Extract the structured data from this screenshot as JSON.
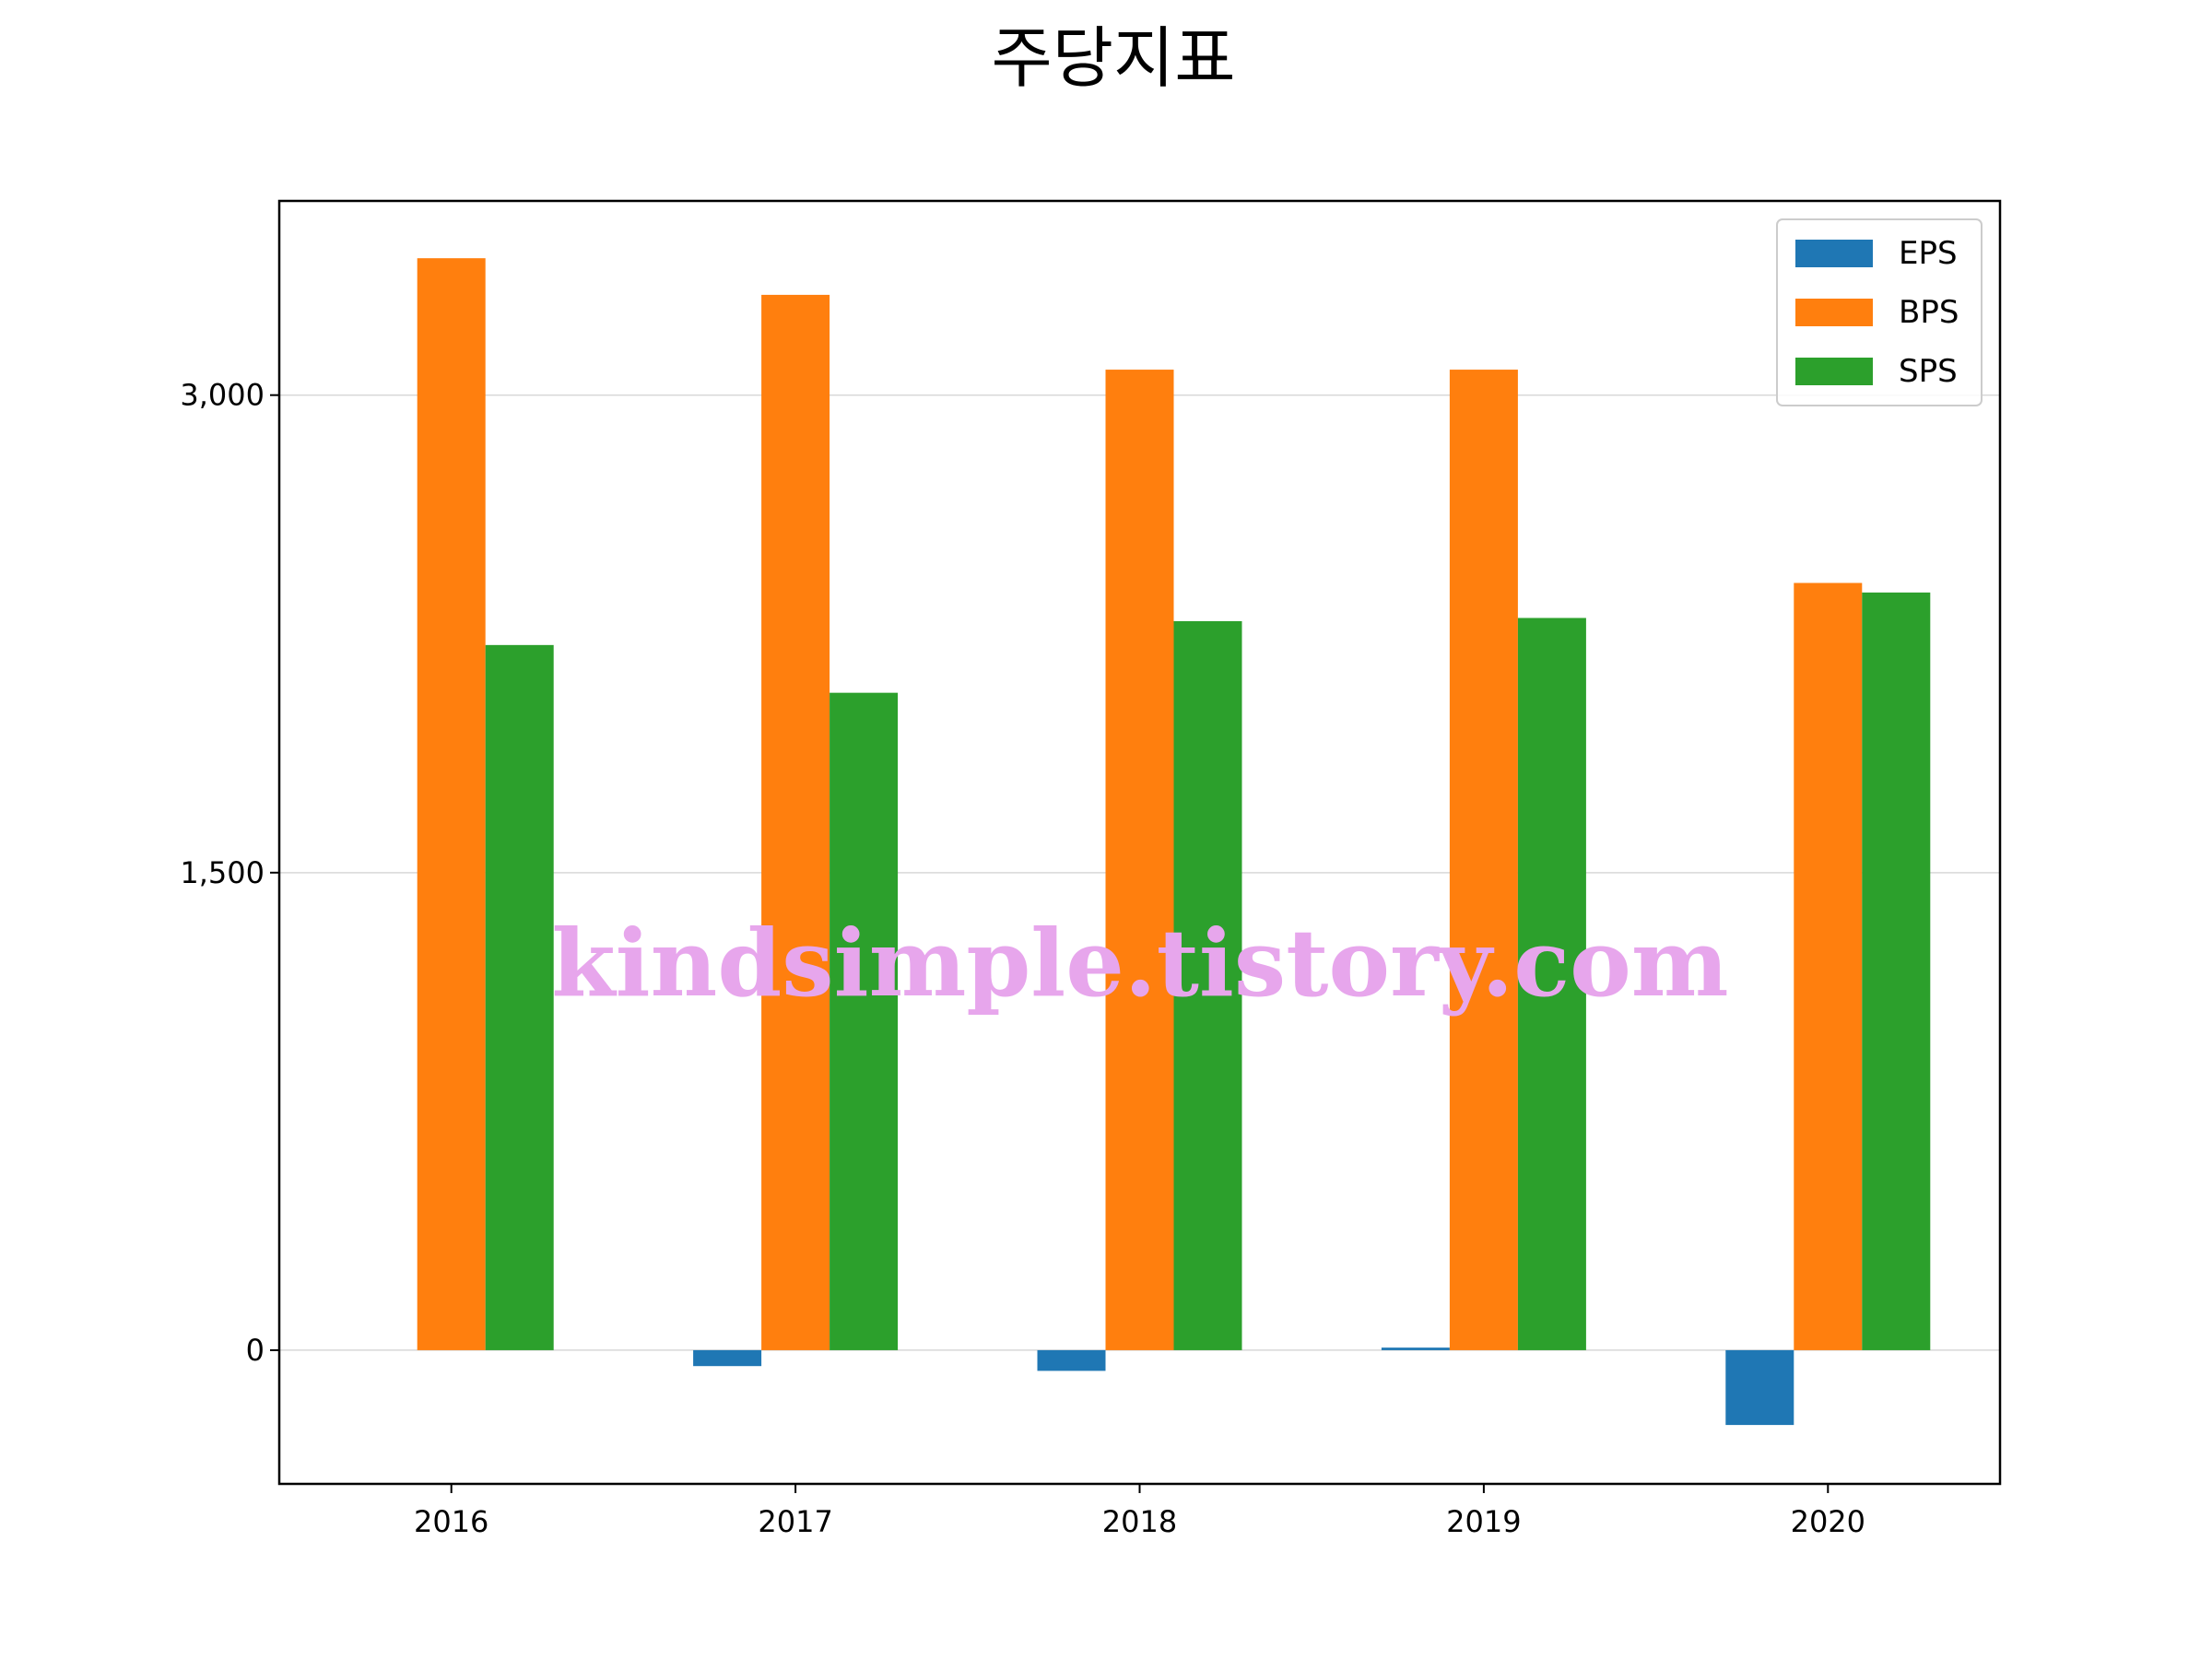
{
  "chart_data": {
    "type": "bar",
    "title": "주당지표",
    "xlabel": "",
    "ylabel": "",
    "categories": [
      "2016",
      "2017",
      "2018",
      "2019",
      "2020"
    ],
    "series": [
      {
        "name": "EPS",
        "color": "#1f77b4",
        "values": [
          0,
          -50,
          -65,
          8,
          -235
        ]
      },
      {
        "name": "BPS",
        "color": "#ff7f0e",
        "values": [
          3430,
          3315,
          3080,
          3080,
          2410
        ]
      },
      {
        "name": "SPS",
        "color": "#2ca02c",
        "values": [
          2215,
          2065,
          2290,
          2300,
          2380
        ]
      }
    ],
    "ylim": [
      -420,
      3610
    ],
    "yticks": [
      0,
      1500,
      3000
    ],
    "ytick_labels": [
      "0",
      "1,500",
      "3,000"
    ],
    "grid": "y",
    "legend_position": "top-right"
  },
  "watermark": "kindsimple.tistory.com"
}
